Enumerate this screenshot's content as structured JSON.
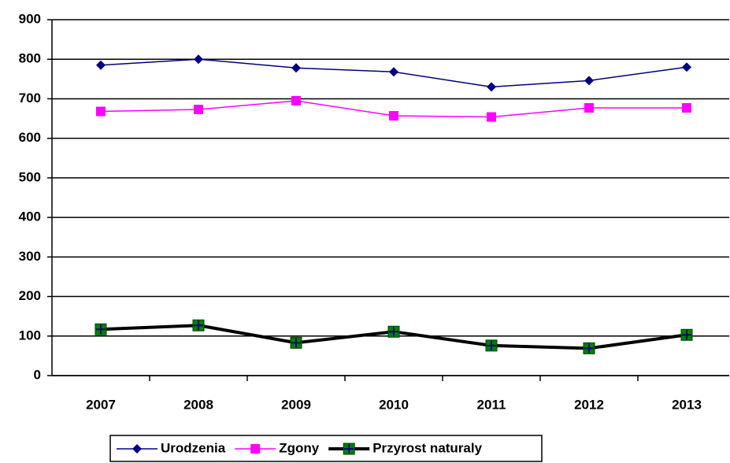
{
  "chart_data": {
    "type": "line",
    "categories": [
      "2007",
      "2008",
      "2009",
      "2010",
      "2011",
      "2012",
      "2013"
    ],
    "series": [
      {
        "name": "Urodzenia",
        "color": "#000080",
        "marker": "diamond",
        "values": [
          785,
          800,
          778,
          768,
          730,
          746,
          780
        ]
      },
      {
        "name": "Zgony",
        "color": "#ff00ff",
        "marker": "square",
        "values": [
          668,
          673,
          695,
          657,
          654,
          677,
          677
        ]
      },
      {
        "name": "Przyrost naturaly",
        "color": "#000000",
        "marker": "square-cross",
        "values": [
          117,
          127,
          83,
          111,
          76,
          69,
          103
        ]
      }
    ],
    "ylim": [
      0,
      900
    ],
    "yticks": [
      0,
      100,
      200,
      300,
      400,
      500,
      600,
      700,
      800,
      900
    ],
    "grid": true,
    "legend": "bottom"
  }
}
